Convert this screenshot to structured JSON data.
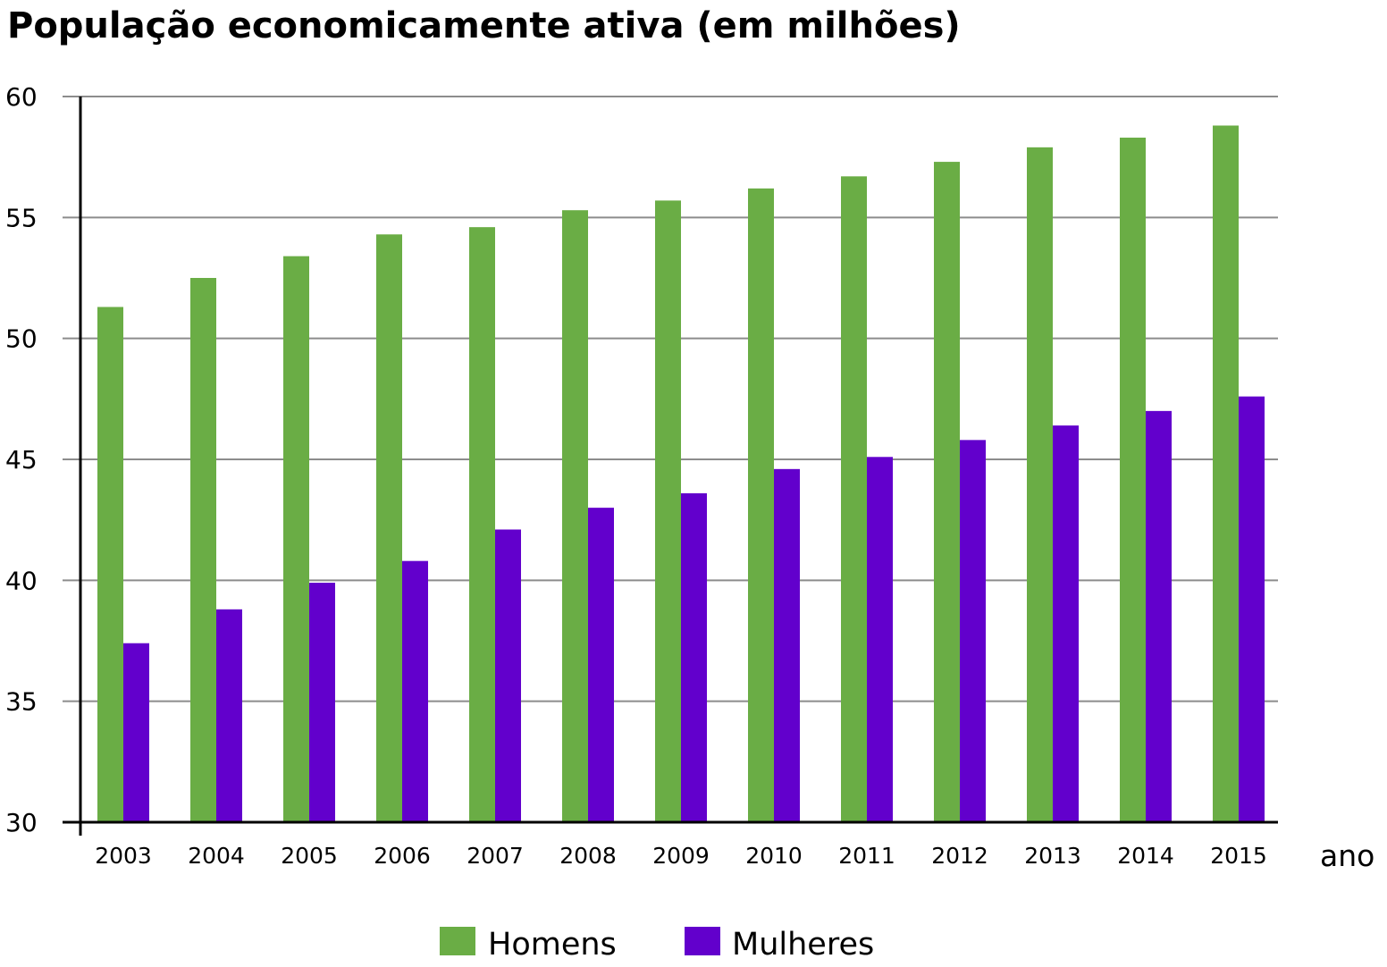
{
  "chart_data": {
    "type": "bar",
    "title": "População economicamente ativa (em milhões)",
    "xlabel": "ano",
    "ylabel": "",
    "ylim": [
      30,
      60
    ],
    "yticks": [
      30,
      35,
      40,
      45,
      50,
      55,
      60
    ],
    "grid": true,
    "legend_position": "bottom",
    "categories": [
      "2003",
      "2004",
      "2005",
      "2006",
      "2007",
      "2008",
      "2009",
      "2010",
      "2011",
      "2012",
      "2013",
      "2014",
      "2015"
    ],
    "series": [
      {
        "name": "Homens",
        "color": "#6aad45",
        "values": [
          51.3,
          52.5,
          53.4,
          54.3,
          54.6,
          55.3,
          55.7,
          56.2,
          56.7,
          57.3,
          57.9,
          58.3,
          58.8
        ]
      },
      {
        "name": "Mulheres",
        "color": "#6200cc",
        "values": [
          37.4,
          38.8,
          39.9,
          40.8,
          42.1,
          43.0,
          43.6,
          44.6,
          45.1,
          45.8,
          46.4,
          47.0,
          47.6
        ]
      }
    ]
  }
}
